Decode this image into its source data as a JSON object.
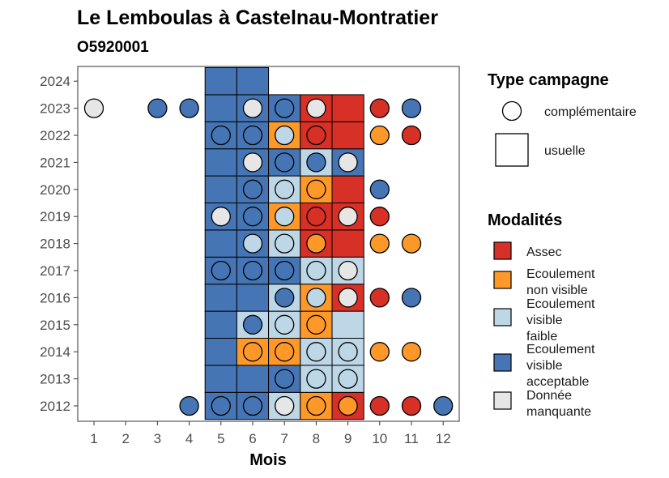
{
  "chart_data": {
    "type": "heatmap",
    "title": "Le Lemboulas à Castelnau-Montratier",
    "subtitle": "O5920001",
    "xlabel": "Mois",
    "ylabel": "",
    "x_ticks": [
      "1",
      "2",
      "3",
      "4",
      "5",
      "6",
      "7",
      "8",
      "9",
      "10",
      "11",
      "12"
    ],
    "y_ticks": [
      "2012",
      "2013",
      "2014",
      "2015",
      "2016",
      "2017",
      "2018",
      "2019",
      "2020",
      "2021",
      "2022",
      "2023",
      "2024"
    ],
    "grid": false,
    "legend_placement": "right",
    "legend_type": {
      "title": "Type campagne",
      "items": [
        {
          "key": "complementaire",
          "label": "complémentaire"
        },
        {
          "key": "usuelle",
          "label": "usuelle"
        }
      ]
    },
    "legend_modalites": {
      "title": "Modalités",
      "items": [
        {
          "key": "A",
          "label_lines": [
            "Assec"
          ],
          "color": "#d73027"
        },
        {
          "key": "N",
          "label_lines": [
            "Ecoulement",
            "non visible"
          ],
          "color": "#fe9929"
        },
        {
          "key": "F",
          "label_lines": [
            "Ecoulement",
            "visible",
            "faible"
          ],
          "color": "#bdd7e7"
        },
        {
          "key": "V",
          "label_lines": [
            "Ecoulement",
            "visible",
            "acceptable"
          ],
          "color": "#4575b4"
        },
        {
          "key": "M",
          "label_lines": [
            "Donnée",
            "manquante"
          ],
          "color": "#e6e6e6"
        }
      ]
    },
    "usuelle": [
      {
        "year": 2012,
        "values": {
          "5": "V",
          "6": "V",
          "7": "F",
          "8": "N",
          "9": "A"
        }
      },
      {
        "year": 2013,
        "values": {
          "5": "V",
          "6": "V",
          "7": "V",
          "8": "F",
          "9": "F"
        }
      },
      {
        "year": 2014,
        "values": {
          "5": "V",
          "6": "N",
          "7": "N",
          "8": "F",
          "9": "F"
        }
      },
      {
        "year": 2015,
        "values": {
          "5": "V",
          "6": "F",
          "7": "F",
          "8": "N",
          "9": "F"
        }
      },
      {
        "year": 2016,
        "values": {
          "5": "V",
          "6": "V",
          "7": "F",
          "8": "N",
          "9": "A"
        }
      },
      {
        "year": 2017,
        "values": {
          "5": "V",
          "6": "V",
          "7": "V",
          "8": "F",
          "9": "F"
        }
      },
      {
        "year": 2018,
        "values": {
          "5": "V",
          "6": "V",
          "7": "F",
          "8": "A",
          "9": "A"
        }
      },
      {
        "year": 2019,
        "values": {
          "5": "V",
          "6": "V",
          "7": "N",
          "8": "A",
          "9": "A"
        }
      },
      {
        "year": 2020,
        "values": {
          "5": "V",
          "6": "V",
          "7": "F",
          "8": "N",
          "9": "A"
        }
      },
      {
        "year": 2021,
        "values": {
          "5": "V",
          "6": "V",
          "7": "V",
          "8": "F",
          "9": "V"
        }
      },
      {
        "year": 2022,
        "values": {
          "5": "V",
          "6": "V",
          "7": "N",
          "8": "A",
          "9": "A"
        }
      },
      {
        "year": 2023,
        "values": {
          "5": "V",
          "6": "V",
          "7": "V",
          "8": "A",
          "9": "A"
        }
      },
      {
        "year": 2024,
        "values": {
          "5": "V",
          "6": "V"
        }
      }
    ],
    "complementaire": [
      {
        "year": 2012,
        "values": {
          "4": "V",
          "5": "V",
          "6": "V",
          "7": "M",
          "8": "N",
          "9": "N",
          "10": "A",
          "11": "A",
          "12": "V"
        }
      },
      {
        "year": 2013,
        "values": {
          "7": "V",
          "8": "F",
          "9": "F"
        }
      },
      {
        "year": 2014,
        "values": {
          "6": "N",
          "7": "N",
          "8": "F",
          "9": "F",
          "10": "N",
          "11": "N"
        }
      },
      {
        "year": 2015,
        "values": {
          "6": "V",
          "7": "F",
          "8": "N"
        }
      },
      {
        "year": 2016,
        "values": {
          "7": "V",
          "8": "F",
          "9": "M",
          "10": "A",
          "11": "V"
        }
      },
      {
        "year": 2017,
        "values": {
          "5": "V",
          "6": "V",
          "7": "V",
          "8": "F",
          "9": "M"
        }
      },
      {
        "year": 2018,
        "values": {
          "6": "F",
          "7": "F",
          "8": "N",
          "10": "N",
          "11": "N"
        }
      },
      {
        "year": 2019,
        "values": {
          "5": "M",
          "6": "V",
          "7": "F",
          "8": "A",
          "9": "M",
          "10": "A"
        }
      },
      {
        "year": 2020,
        "values": {
          "6": "V",
          "7": "F",
          "8": "N",
          "10": "V"
        }
      },
      {
        "year": 2021,
        "values": {
          "6": "M",
          "7": "V",
          "8": "V",
          "9": "M"
        }
      },
      {
        "year": 2022,
        "values": {
          "5": "V",
          "6": "V",
          "7": "F",
          "8": "A",
          "10": "N",
          "11": "A"
        }
      },
      {
        "year": 2023,
        "values": {
          "1": "M",
          "3": "V",
          "4": "V",
          "6": "M",
          "7": "V",
          "8": "M",
          "10": "A",
          "11": "V"
        }
      }
    ]
  }
}
